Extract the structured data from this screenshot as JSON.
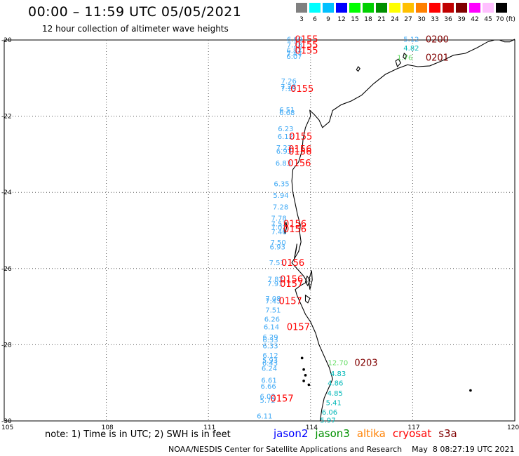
{
  "header": {
    "title": "00:00 – 11:59 UTC 05/05/2021",
    "subtitle": "12 hour collection of altimeter wave heights"
  },
  "scale": {
    "labels": [
      "3",
      "6",
      "9",
      "12",
      "15",
      "18",
      "21",
      "24",
      "27",
      "30",
      "33",
      "36",
      "39",
      "42",
      "45",
      "70 (ft)"
    ],
    "colors": [
      "#808080",
      "#00ffff",
      "#00c0ff",
      "#0000ff",
      "#00ff00",
      "#00d000",
      "#009000",
      "#ffff00",
      "#ffc000",
      "#ff8000",
      "#ff0000",
      "#c00000",
      "#800000",
      "#ff00ff",
      "#ffc0ff",
      "#000000"
    ]
  },
  "axes": {
    "lat_labels": [
      "-20",
      "-22",
      "-24",
      "-26",
      "-28",
      "-30"
    ],
    "lon_labels": [
      "105",
      "108",
      "111",
      "114",
      "117",
      "120"
    ]
  },
  "wave_labels": [
    {
      "t": "6.69",
      "lon": 113.3,
      "lat": -19.97,
      "c": "#3fa9f5"
    },
    {
      "t": "7.28",
      "lon": 113.3,
      "lat": -20.12,
      "c": "#3fa9f5"
    },
    {
      "t": "6.87",
      "lon": 113.29,
      "lat": -20.27,
      "c": "#3fa9f5"
    },
    {
      "t": "7.47",
      "lon": 113.29,
      "lat": -20.35,
      "c": "#3fa9f5"
    },
    {
      "t": "6.07",
      "lon": 113.29,
      "lat": -20.42,
      "c": "#3fa9f5"
    },
    {
      "t": "7.26",
      "lon": 113.13,
      "lat": -21.07,
      "c": "#3fa9f5"
    },
    {
      "t": "7.28",
      "lon": 113.12,
      "lat": -21.22,
      "c": "#3fa9f5"
    },
    {
      "t": "7.15",
      "lon": 113.12,
      "lat": -21.27,
      "c": "#3fa9f5"
    },
    {
      "t": "6.51",
      "lon": 113.08,
      "lat": -21.82,
      "c": "#3fa9f5"
    },
    {
      "t": "6.68",
      "lon": 113.08,
      "lat": -21.9,
      "c": "#3fa9f5"
    },
    {
      "t": "6.23",
      "lon": 113.04,
      "lat": -22.32,
      "c": "#3fa9f5"
    },
    {
      "t": "6.12",
      "lon": 113.03,
      "lat": -22.52,
      "c": "#3fa9f5"
    },
    {
      "t": "7.23",
      "lon": 112.99,
      "lat": -22.82,
      "c": "#3fa9f5"
    },
    {
      "t": "6.93",
      "lon": 112.99,
      "lat": -22.91,
      "c": "#3fa9f5"
    },
    {
      "t": "6.83",
      "lon": 112.97,
      "lat": -23.22,
      "c": "#3fa9f5"
    },
    {
      "t": "6.35",
      "lon": 112.92,
      "lat": -23.77,
      "c": "#3fa9f5"
    },
    {
      "t": "5.94",
      "lon": 112.9,
      "lat": -24.07,
      "c": "#3fa9f5"
    },
    {
      "t": "7.28",
      "lon": 112.89,
      "lat": -24.37,
      "c": "#3fa9f5"
    },
    {
      "t": "7.78",
      "lon": 112.84,
      "lat": -24.67,
      "c": "#3fa9f5"
    },
    {
      "t": "7.51",
      "lon": 112.84,
      "lat": -24.82,
      "c": "#3fa9f5"
    },
    {
      "t": "7.01",
      "lon": 112.84,
      "lat": -24.91,
      "c": "#3fa9f5"
    },
    {
      "t": "7.46",
      "lon": 112.84,
      "lat": -25.03,
      "c": "#3fa9f5"
    },
    {
      "t": "7.50",
      "lon": 112.82,
      "lat": -25.3,
      "c": "#3fa9f5"
    },
    {
      "t": "6.93",
      "lon": 112.8,
      "lat": -25.42,
      "c": "#3fa9f5"
    },
    {
      "t": "7.51",
      "lon": 112.78,
      "lat": -25.84,
      "c": "#3fa9f5"
    },
    {
      "t": "7.82",
      "lon": 112.74,
      "lat": -26.27,
      "c": "#3fa9f5"
    },
    {
      "t": "7.91",
      "lon": 112.73,
      "lat": -26.39,
      "c": "#3fa9f5"
    },
    {
      "t": "7.08",
      "lon": 112.67,
      "lat": -26.78,
      "c": "#3fa9f5"
    },
    {
      "t": "7.43",
      "lon": 112.67,
      "lat": -26.84,
      "c": "#3fa9f5"
    },
    {
      "t": "7.51",
      "lon": 112.67,
      "lat": -27.08,
      "c": "#3fa9f5"
    },
    {
      "t": "6.26",
      "lon": 112.64,
      "lat": -27.32,
      "c": "#3fa9f5"
    },
    {
      "t": "6.14",
      "lon": 112.62,
      "lat": -27.52,
      "c": "#3fa9f5"
    },
    {
      "t": "6.29",
      "lon": 112.59,
      "lat": -27.79,
      "c": "#3fa9f5"
    },
    {
      "t": "6.33",
      "lon": 112.59,
      "lat": -27.86,
      "c": "#3fa9f5"
    },
    {
      "t": "6.33",
      "lon": 112.59,
      "lat": -28.02,
      "c": "#3fa9f5"
    },
    {
      "t": "6.12",
      "lon": 112.59,
      "lat": -28.27,
      "c": "#3fa9f5"
    },
    {
      "t": "5.93",
      "lon": 112.58,
      "lat": -28.4,
      "c": "#3fa9f5"
    },
    {
      "t": "6.43",
      "lon": 112.58,
      "lat": -28.47,
      "c": "#3fa9f5"
    },
    {
      "t": "6.24",
      "lon": 112.56,
      "lat": -28.61,
      "c": "#3fa9f5"
    },
    {
      "t": "6.61",
      "lon": 112.55,
      "lat": -28.92,
      "c": "#3fa9f5"
    },
    {
      "t": "6.66",
      "lon": 112.53,
      "lat": -29.08,
      "c": "#3fa9f5"
    },
    {
      "t": "6.02",
      "lon": 112.51,
      "lat": -29.35,
      "c": "#3fa9f5"
    },
    {
      "t": "5.72",
      "lon": 112.51,
      "lat": -29.45,
      "c": "#3fa9f5"
    },
    {
      "t": "6.11",
      "lon": 112.42,
      "lat": -29.86,
      "c": "#3fa9f5"
    },
    {
      "t": "5.12",
      "lon": 116.73,
      "lat": -19.97,
      "c": "#3fa9f5"
    },
    {
      "t": "4.82",
      "lon": 116.73,
      "lat": -20.2,
      "c": "#00b7b7"
    },
    {
      "t": "1.76",
      "lon": 116.54,
      "lat": -20.45,
      "c": "#66dd66"
    },
    {
      "t": "12.70",
      "lon": 114.51,
      "lat": -28.46,
      "c": "#66dd66"
    },
    {
      "t": "4.83",
      "lon": 114.58,
      "lat": -28.75,
      "c": "#00b7b7"
    },
    {
      "t": "4.86",
      "lon": 114.5,
      "lat": -29.0,
      "c": "#00b7b7"
    },
    {
      "t": "4.85",
      "lon": 114.49,
      "lat": -29.26,
      "c": "#00b7b7"
    },
    {
      "t": "5.41",
      "lon": 114.45,
      "lat": -29.51,
      "c": "#00b7b7"
    },
    {
      "t": "6.06",
      "lon": 114.33,
      "lat": -29.76,
      "c": "#00b7b7"
    },
    {
      "t": "5.97",
      "lon": 114.28,
      "lat": -29.97,
      "c": "#00b7b7"
    }
  ],
  "time_labels": [
    {
      "t": "0155",
      "lon": 113.54,
      "lat": -19.97,
      "c": "#ff0000"
    },
    {
      "t": "0155",
      "lon": 113.54,
      "lat": -20.12,
      "c": "#ff0000"
    },
    {
      "t": "0155",
      "lon": 113.54,
      "lat": -20.27,
      "c": "#ff0000"
    },
    {
      "t": "0155",
      "lon": 113.41,
      "lat": -21.27,
      "c": "#ff0000"
    },
    {
      "t": "0155",
      "lon": 113.37,
      "lat": -22.52,
      "c": "#ff0000"
    },
    {
      "t": "0156",
      "lon": 113.35,
      "lat": -22.85,
      "c": "#ff0000"
    },
    {
      "t": "0156",
      "lon": 113.35,
      "lat": -22.92,
      "c": "#ff0000"
    },
    {
      "t": "0156",
      "lon": 113.33,
      "lat": -23.22,
      "c": "#ff0000"
    },
    {
      "t": "0156",
      "lon": 113.2,
      "lat": -24.82,
      "c": "#ff0000"
    },
    {
      "t": "0156",
      "lon": 113.2,
      "lat": -24.95,
      "c": "#ff0000"
    },
    {
      "t": "0156",
      "lon": 113.14,
      "lat": -25.84,
      "c": "#ff0000"
    },
    {
      "t": "0156",
      "lon": 113.1,
      "lat": -26.27,
      "c": "#ff0000"
    },
    {
      "t": "0157",
      "lon": 113.1,
      "lat": -26.39,
      "c": "#ff0000"
    },
    {
      "t": "0157",
      "lon": 113.07,
      "lat": -26.84,
      "c": "#ff0000"
    },
    {
      "t": "0157",
      "lon": 113.3,
      "lat": -27.52,
      "c": "#ff0000"
    },
    {
      "t": "0157",
      "lon": 112.82,
      "lat": -29.4,
      "c": "#ff0000"
    },
    {
      "t": "0200",
      "lon": 117.38,
      "lat": -19.97,
      "c": "#800000"
    },
    {
      "t": "0201",
      "lon": 117.38,
      "lat": -20.45,
      "c": "#800000"
    },
    {
      "t": "0203",
      "lon": 115.29,
      "lat": -28.46,
      "c": "#800000"
    }
  ],
  "footer": {
    "note": "note:  1) Time is in UTC;  2) SWH is in feet",
    "satellites": [
      {
        "name": "jason2",
        "color": "#0000ff"
      },
      {
        "name": "jason3",
        "color": "#009000"
      },
      {
        "name": "altika",
        "color": "#ff8000"
      },
      {
        "name": "cryosat",
        "color": "#ff0000"
      },
      {
        "name": "s3a",
        "color": "#800000"
      }
    ],
    "credit": "NOAA/NESDIS Center for Satellite Applications and Research    May  8 08:27:19 UTC 2021"
  }
}
